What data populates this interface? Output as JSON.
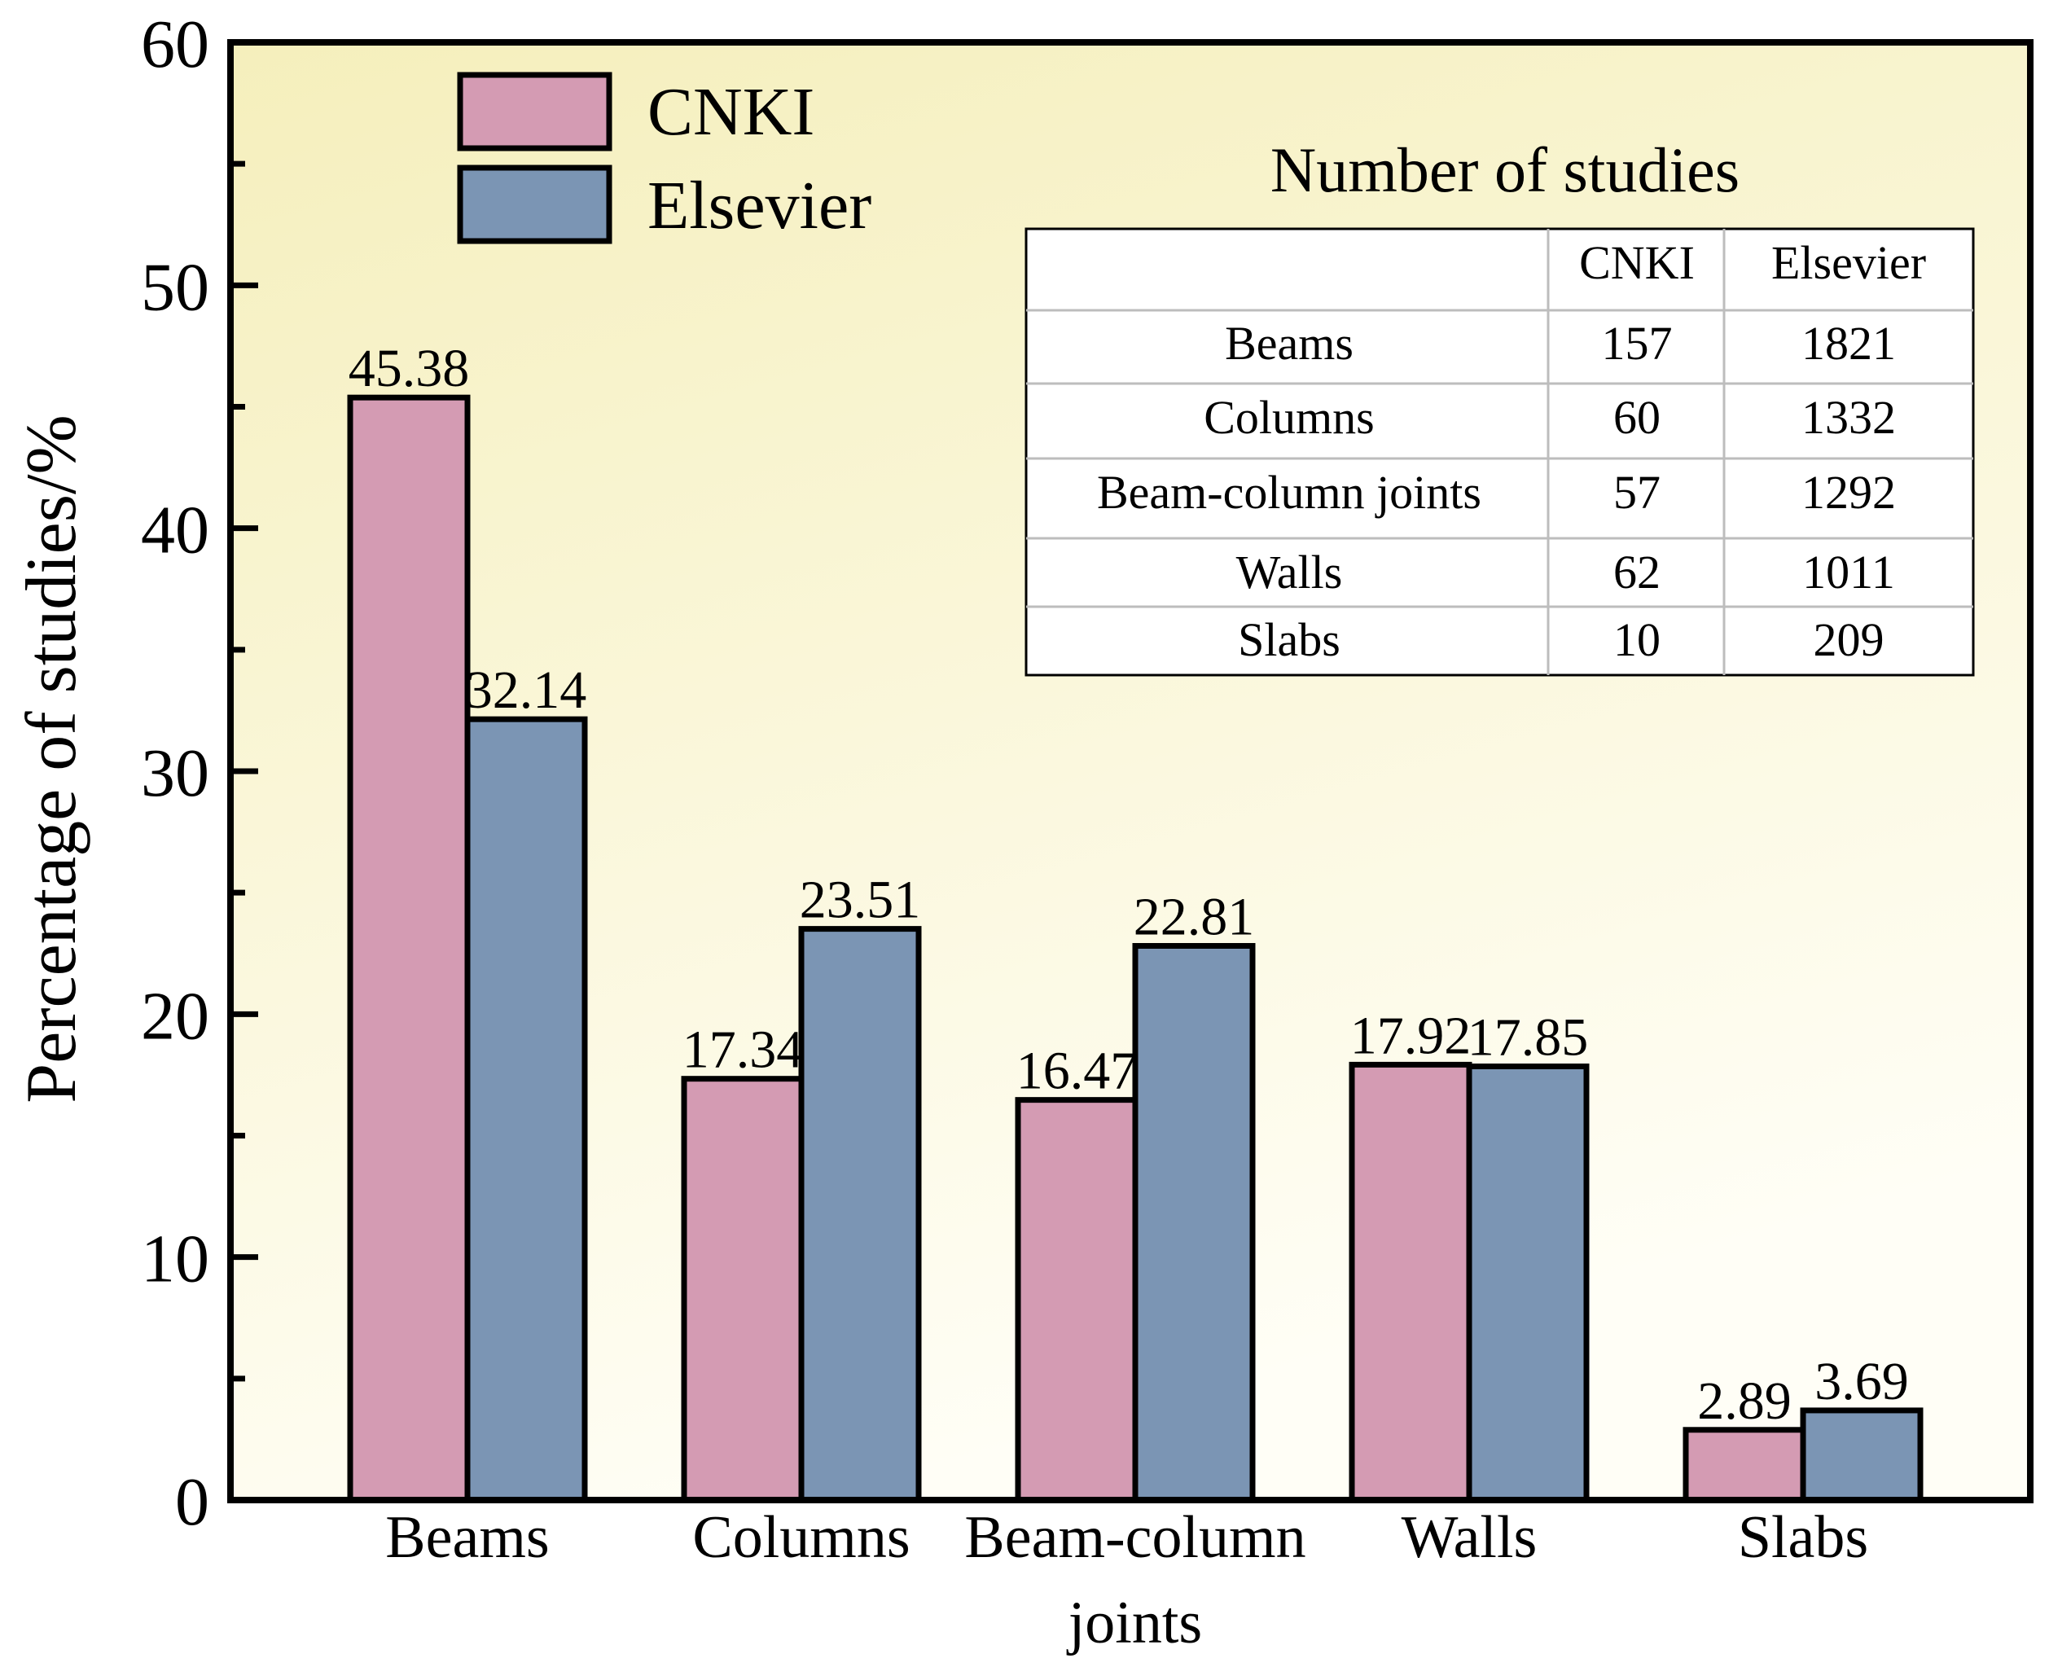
{
  "chart_data": {
    "type": "bar",
    "title": "",
    "xlabel": "",
    "ylabel": "Percentage of studies/%",
    "ylim": [
      0,
      60
    ],
    "yticks": [
      0,
      10,
      20,
      30,
      40,
      50,
      60
    ],
    "categories": [
      "Beams",
      "Columns",
      "Beam-column joints",
      "Walls",
      "Slabs"
    ],
    "category_label_lines": [
      [
        "Beams"
      ],
      [
        "Columns"
      ],
      [
        "Beam-column",
        "joints"
      ],
      [
        "Walls"
      ],
      [
        "Slabs"
      ]
    ],
    "series": [
      {
        "name": "CNKI",
        "values": [
          45.38,
          17.34,
          16.47,
          17.92,
          2.89
        ],
        "labels": [
          "45.38",
          "17.34",
          "16.47",
          "17.92",
          "2.89"
        ]
      },
      {
        "name": "Elsevier",
        "values": [
          32.14,
          23.51,
          22.81,
          17.85,
          3.69
        ],
        "labels": [
          "32.14",
          "23.51",
          "22.81",
          "17.85",
          "3.69"
        ]
      }
    ],
    "legend": {
      "position": "top-left",
      "entries": [
        "CNKI",
        "Elsevier"
      ]
    },
    "grid": false,
    "inset_table": {
      "title": "Number of studies",
      "headers": [
        "",
        "CNKI",
        "Elsevier"
      ],
      "rows": [
        [
          "Beams",
          "157",
          "1821"
        ],
        [
          "Columns",
          "60",
          "1332"
        ],
        [
          "Beam-column joints",
          "57",
          "1292"
        ],
        [
          "Walls",
          "62",
          "1011"
        ],
        [
          "Slabs",
          "10",
          "209"
        ]
      ]
    }
  },
  "colors": {
    "cnki": "#d49bb3",
    "elsevier": "#7b95b4",
    "background_top": "#f5efbc",
    "background_bottom": "#fffef6"
  }
}
